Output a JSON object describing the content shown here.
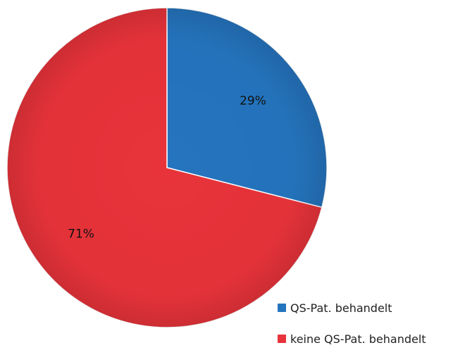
{
  "chart_data": {
    "type": "pie",
    "slices": [
      {
        "label": "QS-Pat. behandelt",
        "value": 29,
        "data_label": "29%",
        "color": "#2574BE"
      },
      {
        "label": "keine QS-Pat. behandelt",
        "value": 71,
        "data_label": "71%",
        "color": "#E8333A"
      }
    ],
    "legend_position": "bottom-right"
  },
  "legend": {
    "items": [
      {
        "label": "QS-Pat. behandelt"
      },
      {
        "label": "keine QS-Pat. behandelt"
      }
    ]
  }
}
